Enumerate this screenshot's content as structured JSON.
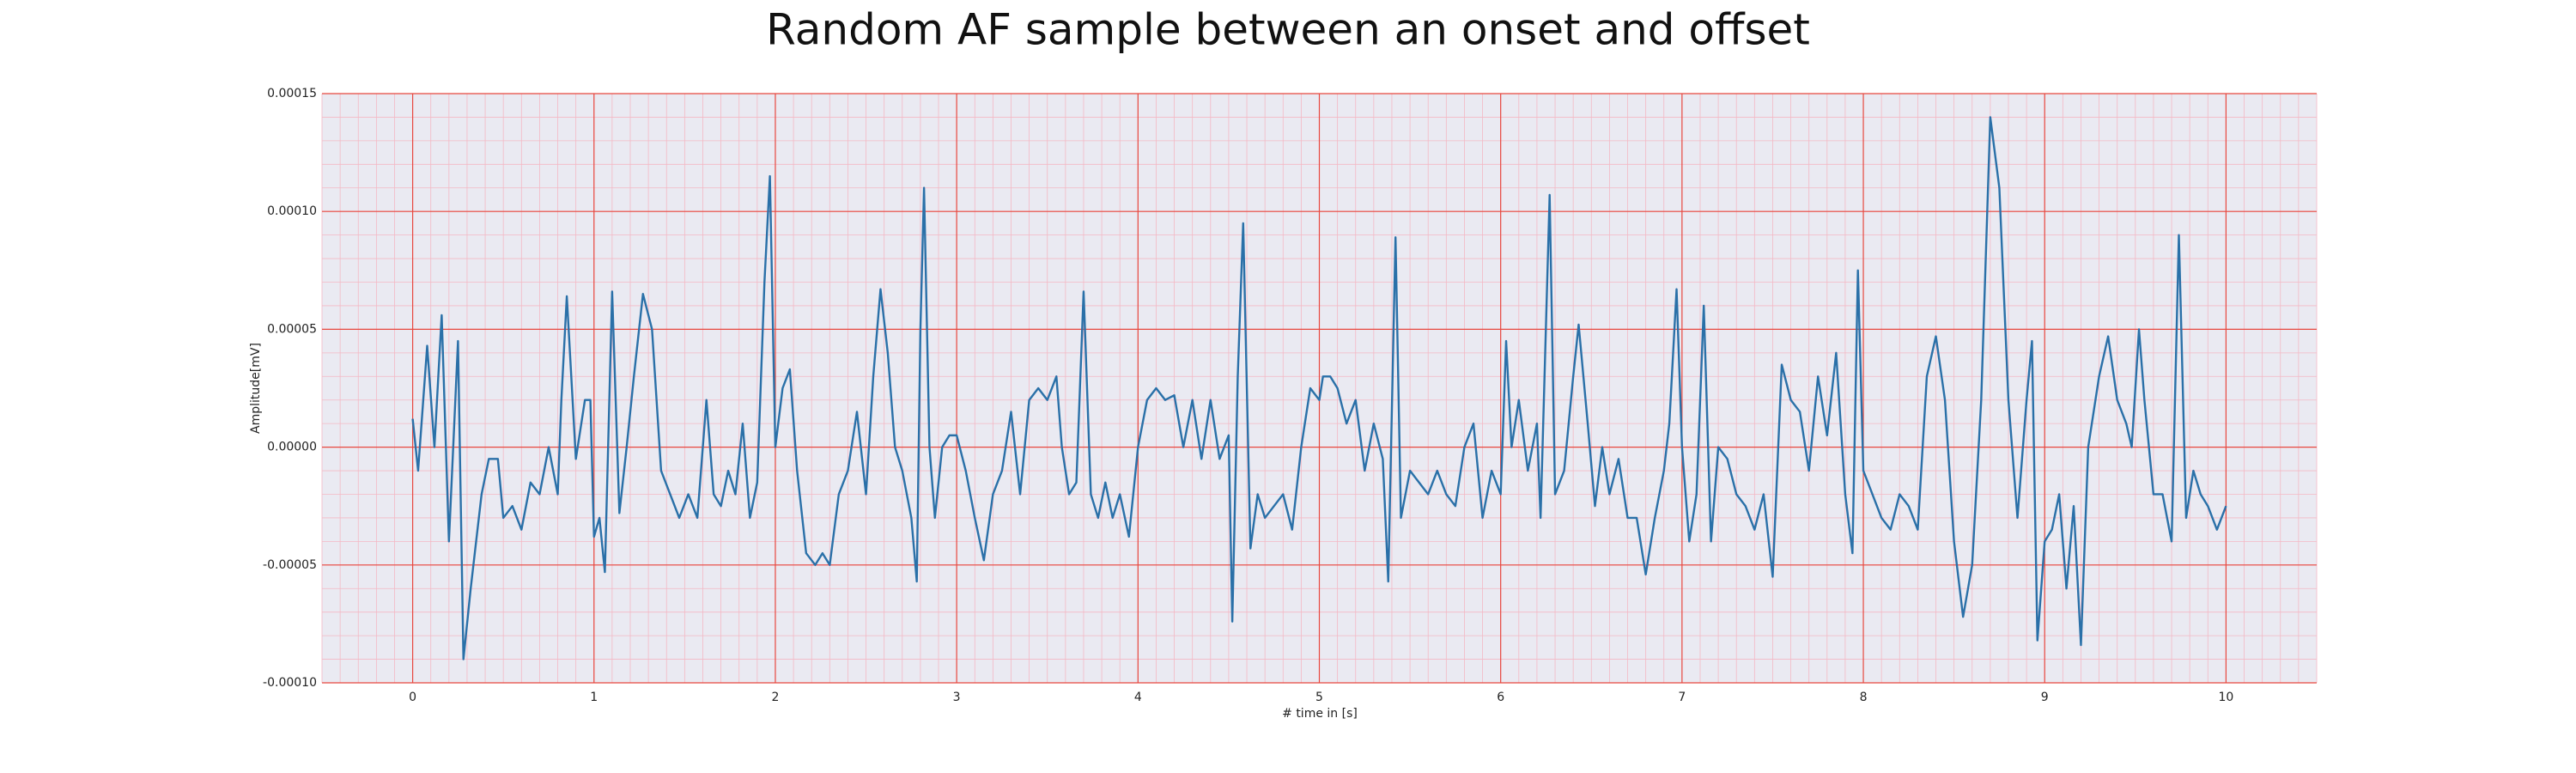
{
  "chart_data": {
    "type": "line",
    "title": "Random AF sample between an onset and offset",
    "xlabel": "# time in [s]",
    "ylabel": "Amplitude[mV]",
    "xlim": [
      -0.5,
      10.5
    ],
    "ylim": [
      -0.0001,
      0.00015
    ],
    "xticks": [
      0,
      1,
      2,
      3,
      4,
      5,
      6,
      7,
      8,
      9,
      10
    ],
    "yticks": [
      {
        "value": -0.0001,
        "label": "-0.00010"
      },
      {
        "value": -5e-05,
        "label": "-0.00005"
      },
      {
        "value": 0,
        "label": "0.00000"
      },
      5e-05,
      {
        "value": 0.0001,
        "label": "0.00010"
      },
      0.00015
    ],
    "grid": true,
    "minor_grid": true,
    "color": "#2a70a8",
    "x": [
      0,
      0.03,
      0.08,
      0.12,
      0.16,
      0.2,
      0.25,
      0.28,
      0.32,
      0.38,
      0.42,
      0.47,
      0.5,
      0.55,
      0.6,
      0.65,
      0.7,
      0.75,
      0.8,
      0.82,
      0.85,
      0.9,
      0.95,
      0.98,
      1.0,
      1.03,
      1.06,
      1.1,
      1.14,
      1.18,
      1.22,
      1.27,
      1.32,
      1.37,
      1.42,
      1.47,
      1.52,
      1.57,
      1.62,
      1.66,
      1.7,
      1.74,
      1.78,
      1.82,
      1.86,
      1.9,
      1.94,
      1.97,
      2.0,
      2.04,
      2.08,
      2.12,
      2.17,
      2.22,
      2.26,
      2.3,
      2.35,
      2.4,
      2.45,
      2.5,
      2.54,
      2.58,
      2.62,
      2.66,
      2.7,
      2.75,
      2.78,
      2.8,
      2.82,
      2.85,
      2.88,
      2.92,
      2.96,
      3.0,
      3.05,
      3.1,
      3.15,
      3.2,
      3.25,
      3.3,
      3.35,
      3.4,
      3.45,
      3.5,
      3.55,
      3.58,
      3.62,
      3.66,
      3.7,
      3.74,
      3.78,
      3.82,
      3.86,
      3.9,
      3.95,
      4.0,
      4.05,
      4.1,
      4.15,
      4.2,
      4.25,
      4.3,
      4.35,
      4.4,
      4.45,
      4.5,
      4.52,
      4.55,
      4.58,
      4.62,
      4.66,
      4.7,
      4.75,
      4.8,
      4.85,
      4.9,
      4.95,
      5.0,
      5.02,
      5.06,
      5.1,
      5.15,
      5.2,
      5.25,
      5.3,
      5.35,
      5.38,
      5.42,
      5.45,
      5.5,
      5.55,
      5.6,
      5.65,
      5.7,
      5.75,
      5.8,
      5.85,
      5.9,
      5.95,
      6.0,
      6.03,
      6.06,
      6.1,
      6.15,
      6.2,
      6.22,
      6.27,
      6.3,
      6.35,
      6.4,
      6.43,
      6.48,
      6.52,
      6.56,
      6.6,
      6.65,
      6.7,
      6.75,
      6.8,
      6.85,
      6.9,
      6.93,
      6.97,
      7.0,
      7.04,
      7.08,
      7.12,
      7.16,
      7.2,
      7.25,
      7.3,
      7.35,
      7.4,
      7.45,
      7.5,
      7.55,
      7.6,
      7.65,
      7.7,
      7.75,
      7.8,
      7.85,
      7.9,
      7.94,
      7.97,
      8.0,
      8.05,
      8.1,
      8.15,
      8.2,
      8.25,
      8.3,
      8.35,
      8.4,
      8.45,
      8.5,
      8.55,
      8.6,
      8.65,
      8.7,
      8.75,
      8.8,
      8.85,
      8.9,
      8.93,
      8.96,
      9.0,
      9.04,
      9.08,
      9.12,
      9.16,
      9.2,
      9.24,
      9.3,
      9.35,
      9.4,
      9.45,
      9.48,
      9.52,
      9.55,
      9.6,
      9.65,
      9.7,
      9.74,
      9.78,
      9.82,
      9.86,
      9.9,
      9.95,
      10.0
    ],
    "values": [
      1.2e-05,
      -1e-05,
      4.3e-05,
      0,
      5.6e-05,
      -4e-05,
      4.5e-05,
      -9e-05,
      -6e-05,
      -2e-05,
      -5e-06,
      -5e-06,
      -3e-05,
      -2.5e-05,
      -3.5e-05,
      -1.5e-05,
      -2e-05,
      0,
      -2e-05,
      2e-05,
      6.4e-05,
      -5e-06,
      2e-05,
      2e-05,
      -3.8e-05,
      -3e-05,
      -5.3e-05,
      6.6e-05,
      -2.8e-05,
      0,
      3e-05,
      6.5e-05,
      5e-05,
      -1e-05,
      -2e-05,
      -3e-05,
      -2e-05,
      -3e-05,
      2e-05,
      -2e-05,
      -2.5e-05,
      -1e-05,
      -2e-05,
      1e-05,
      -3e-05,
      -1.5e-05,
      7e-05,
      0.000115,
      0,
      2.5e-05,
      3.3e-05,
      -1e-05,
      -4.5e-05,
      -5e-05,
      -4.5e-05,
      -5e-05,
      -2e-05,
      -1e-05,
      1.5e-05,
      -2e-05,
      3e-05,
      6.7e-05,
      4e-05,
      0,
      -1e-05,
      -3e-05,
      -5.7e-05,
      5e-05,
      0.00011,
      0,
      -3e-05,
      0,
      5e-06,
      5e-06,
      -1e-05,
      -3e-05,
      -4.8e-05,
      -2e-05,
      -1e-05,
      1.5e-05,
      -2e-05,
      2e-05,
      2.5e-05,
      2e-05,
      3e-05,
      0,
      -2e-05,
      -1.5e-05,
      6.6e-05,
      -2e-05,
      -3e-05,
      -1.5e-05,
      -3e-05,
      -2e-05,
      -3.8e-05,
      0,
      2e-05,
      2.5e-05,
      2e-05,
      2.2e-05,
      0,
      2e-05,
      -5e-06,
      2e-05,
      -5e-06,
      5e-06,
      -7.4e-05,
      3e-05,
      9.5e-05,
      -4.3e-05,
      -2e-05,
      -3e-05,
      -2.5e-05,
      -2e-05,
      -3.5e-05,
      0,
      2.5e-05,
      2e-05,
      3e-05,
      3e-05,
      2.5e-05,
      1e-05,
      2e-05,
      -1e-05,
      1e-05,
      -5e-06,
      -5.7e-05,
      8.9e-05,
      -3e-05,
      -1e-05,
      -1.5e-05,
      -2e-05,
      -1e-05,
      -2e-05,
      -2.5e-05,
      0,
      1e-05,
      -3e-05,
      -1e-05,
      -2e-05,
      4.5e-05,
      0,
      2e-05,
      -1e-05,
      1e-05,
      -3e-05,
      0.000107,
      -2e-05,
      -1e-05,
      3e-05,
      5.2e-05,
      1e-05,
      -2.5e-05,
      0,
      -2e-05,
      -5e-06,
      -3e-05,
      -3e-05,
      -5.4e-05,
      -3e-05,
      -1e-05,
      1e-05,
      6.7e-05,
      0,
      -4e-05,
      -2e-05,
      6e-05,
      -4e-05,
      0,
      -5e-06,
      -2e-05,
      -2.5e-05,
      -3.5e-05,
      -2e-05,
      -5.5e-05,
      3.5e-05,
      2e-05,
      1.5e-05,
      -1e-05,
      3e-05,
      5e-06,
      4e-05,
      -2e-05,
      -4.5e-05,
      7.5e-05,
      -1e-05,
      -2e-05,
      -3e-05,
      -3.5e-05,
      -2e-05,
      -2.5e-05,
      -3.5e-05,
      3e-05,
      4.7e-05,
      2e-05,
      -4e-05,
      -7.2e-05,
      -5e-05,
      2e-05,
      0.00014,
      0.00011,
      2e-05,
      -3e-05,
      2e-05,
      4.5e-05,
      -8.2e-05,
      -4e-05,
      -3.5e-05,
      -2e-05,
      -6e-05,
      -2.5e-05,
      -8.4e-05,
      0,
      3e-05,
      4.7e-05,
      2e-05,
      1e-05,
      0,
      5e-05,
      2e-05,
      -2e-05,
      -2e-05,
      -4e-05,
      9e-05,
      -3e-05,
      -1e-05,
      -2e-05,
      -2.5e-05,
      -3.5e-05,
      -2.5e-05
    ]
  }
}
